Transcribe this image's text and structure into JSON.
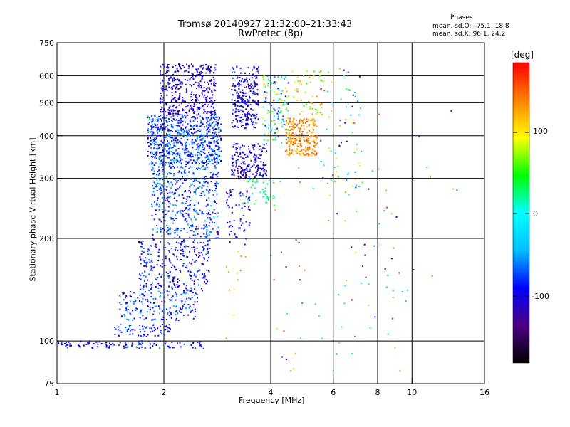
{
  "title": {
    "line1": "Tromsø 20140927 21:32:00–21:33:43",
    "line2": "RwPretec (8p)"
  },
  "phases_box": {
    "title": "Phases",
    "o_line": "mean, sd,O: –75.1, 18.8",
    "x_line": "mean, sd,X:  96.1, 24.2"
  },
  "colorbar": {
    "unit": "[deg]",
    "ticks": [
      "100",
      "0",
      "-100"
    ],
    "range": [
      -180,
      180
    ],
    "colors": [
      "#000000",
      "#4b0082",
      "#0000ff",
      "#00bfff",
      "#00ffff",
      "#00ff00",
      "#ffff00",
      "#ff8000",
      "#ff0000"
    ]
  },
  "chart_data": {
    "type": "scatter",
    "xlabel": "Frequency [MHz]",
    "ylabel": "Stationary phase Virtual Height [km]",
    "x_scale": "log",
    "y_scale": "log",
    "xlim": [
      1,
      16
    ],
    "ylim": [
      75,
      750
    ],
    "x_ticks": [
      1,
      2,
      4,
      6,
      8,
      10,
      16
    ],
    "x_tick_labels": [
      "1",
      "2",
      "4",
      "6",
      "8",
      "10",
      "16"
    ],
    "y_ticks": [
      75,
      100,
      200,
      300,
      400,
      500,
      600,
      750
    ],
    "y_tick_labels": [
      "75",
      "100",
      "200",
      "300",
      "400",
      "500",
      "600",
      "750"
    ],
    "vertical_lines": [
      2,
      4,
      6,
      8,
      10
    ],
    "horizontal_lines": [
      100,
      200,
      300,
      400,
      500,
      600
    ],
    "point_clusters": [
      {
        "x": [
          1.0,
          1.4
        ],
        "y": [
          95,
          100
        ],
        "phase": [
          -110,
          -80
        ],
        "n": 40
      },
      {
        "x": [
          1.4,
          2.6
        ],
        "y": [
          95,
          100
        ],
        "phase": [
          -120,
          -70
        ],
        "n": 70
      },
      {
        "x": [
          1.45,
          2.1
        ],
        "y": [
          103,
          112
        ],
        "phase": [
          -120,
          -60
        ],
        "n": 70
      },
      {
        "x": [
          1.5,
          2.5
        ],
        "y": [
          115,
          140
        ],
        "phase": [
          -130,
          -40
        ],
        "n": 180
      },
      {
        "x": [
          1.7,
          2.7
        ],
        "y": [
          140,
          200
        ],
        "phase": [
          -130,
          -60
        ],
        "n": 280
      },
      {
        "x": [
          1.85,
          2.85
        ],
        "y": [
          200,
          330
        ],
        "phase": [
          -120,
          -40
        ],
        "n": 450
      },
      {
        "x": [
          1.8,
          2.9
        ],
        "y": [
          330,
          460
        ],
        "phase": [
          -120,
          -40
        ],
        "n": 700
      },
      {
        "x": [
          1.95,
          2.8
        ],
        "y": [
          460,
          650
        ],
        "phase": [
          -140,
          -80
        ],
        "n": 380
      },
      {
        "x": [
          3.0,
          3.5
        ],
        "y": [
          190,
          280
        ],
        "phase": [
          -130,
          -80
        ],
        "n": 60
      },
      {
        "x": [
          3.1,
          3.9
        ],
        "y": [
          300,
          380
        ],
        "phase": [
          -140,
          -70
        ],
        "n": 180
      },
      {
        "x": [
          3.1,
          3.7
        ],
        "y": [
          420,
          640
        ],
        "phase": [
          -140,
          -70
        ],
        "n": 260
      },
      {
        "x": [
          3.3,
          4.1
        ],
        "y": [
          250,
          300
        ],
        "phase": [
          -30,
          60
        ],
        "n": 45
      },
      {
        "x": [
          3.8,
          4.5
        ],
        "y": [
          380,
          600
        ],
        "phase": [
          -110,
          120
        ],
        "n": 120
      },
      {
        "x": [
          4.4,
          5.4
        ],
        "y": [
          350,
          450
        ],
        "phase": [
          100,
          160
        ],
        "n": 240
      },
      {
        "x": [
          4.6,
          5.6
        ],
        "y": [
          460,
          620
        ],
        "phase": [
          40,
          150
        ],
        "n": 50
      },
      {
        "x": [
          5.5,
          7.2
        ],
        "y": [
          280,
          640
        ],
        "phase": [
          -140,
          160
        ],
        "n": 70
      },
      {
        "x": [
          3.0,
          3.4
        ],
        "y": [
          100,
          200
        ],
        "phase": [
          60,
          150
        ],
        "n": 12
      },
      {
        "x": [
          4.0,
          9.5
        ],
        "y": [
          80,
          330
        ],
        "phase": [
          -150,
          170
        ],
        "n": 80
      },
      {
        "x": [
          8.0,
          13.5
        ],
        "y": [
          130,
          520
        ],
        "phase": [
          -140,
          160
        ],
        "n": 14
      }
    ]
  }
}
